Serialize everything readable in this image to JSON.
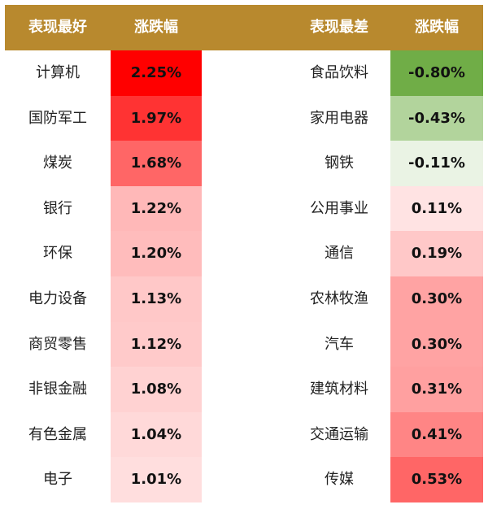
{
  "headers": {
    "best_name": "表现最好",
    "best_change": "涨跌幅",
    "worst_name": "表现最差",
    "worst_change": "涨跌幅"
  },
  "colors": {
    "header_bg": "#b8892e"
  },
  "rows": [
    {
      "best": {
        "name": "计算机",
        "change": "2.25%",
        "color": "#ff0000"
      },
      "worst": {
        "name": "食品饮料",
        "change": "-0.80%",
        "color": "#70ad47"
      }
    },
    {
      "best": {
        "name": "国防军工",
        "change": "1.97%",
        "color": "#ff3333"
      },
      "worst": {
        "name": "家用电器",
        "change": "-0.43%",
        "color": "#b2d49c"
      }
    },
    {
      "best": {
        "name": "煤炭",
        "change": "1.68%",
        "color": "#ff6666"
      },
      "worst": {
        "name": "钢铁",
        "change": "-0.11%",
        "color": "#eaf3e4"
      }
    },
    {
      "best": {
        "name": "银行",
        "change": "1.22%",
        "color": "#ffb8b8"
      },
      "worst": {
        "name": "公用事业",
        "change": "0.11%",
        "color": "#ffe3e3"
      }
    },
    {
      "best": {
        "name": "环保",
        "change": "1.20%",
        "color": "#ffbcbc"
      },
      "worst": {
        "name": "通信",
        "change": "0.19%",
        "color": "#ffc8c8"
      }
    },
    {
      "best": {
        "name": "电力设备",
        "change": "1.13%",
        "color": "#ffc8c8"
      },
      "worst": {
        "name": "农林牧渔",
        "change": "0.30%",
        "color": "#ffa3a3"
      }
    },
    {
      "best": {
        "name": "商贸零售",
        "change": "1.12%",
        "color": "#ffcaca"
      },
      "worst": {
        "name": "汽车",
        "change": "0.30%",
        "color": "#ffa3a3"
      }
    },
    {
      "best": {
        "name": "非银金融",
        "change": "1.08%",
        "color": "#ffd2d2"
      },
      "worst": {
        "name": "建筑材料",
        "change": "0.31%",
        "color": "#ffa0a0"
      }
    },
    {
      "best": {
        "name": "有色金属",
        "change": "1.04%",
        "color": "#ffd9d9"
      },
      "worst": {
        "name": "交通运输",
        "change": "0.41%",
        "color": "#ff8585"
      }
    },
    {
      "best": {
        "name": "电子",
        "change": "1.01%",
        "color": "#ffdede"
      },
      "worst": {
        "name": "传媒",
        "change": "0.53%",
        "color": "#ff6666"
      }
    }
  ]
}
